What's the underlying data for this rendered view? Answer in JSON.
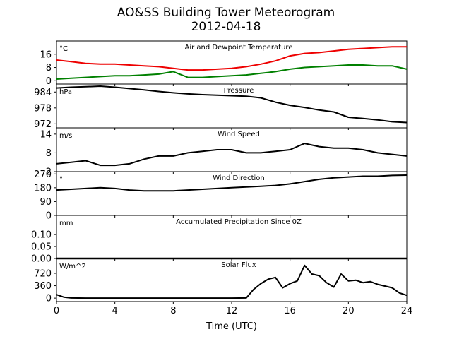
{
  "title": "AO&SS Building Tower Meteorogram",
  "subtitle": "2012-04-18",
  "xlabel": "Time (UTC)",
  "xticks": [
    "0",
    "4",
    "8",
    "12",
    "16",
    "20",
    "24"
  ],
  "colors": {
    "temperature": "#ee0000",
    "dewpoint": "#008000",
    "line": "#000000"
  },
  "chart_data": [
    {
      "type": "line",
      "title": "Air and Dewpoint Temperature",
      "unit": "°C",
      "ylim": [
        -2,
        24
      ],
      "yticks": [
        "0",
        "8",
        "16"
      ],
      "x": [
        0,
        1,
        2,
        3,
        4,
        5,
        6,
        7,
        8,
        9,
        10,
        11,
        12,
        13,
        14,
        15,
        16,
        17,
        18,
        19,
        20,
        21,
        22,
        23,
        24
      ],
      "series": [
        {
          "color": "#ee0000",
          "values": [
            12.5,
            11.5,
            10.5,
            10,
            10,
            9.5,
            9,
            8.5,
            7.5,
            6.5,
            6.5,
            7,
            7.5,
            8.5,
            10,
            12,
            15,
            16.5,
            17,
            18,
            19,
            19.5,
            20,
            20.5,
            20.5
          ]
        },
        {
          "color": "#008000",
          "values": [
            1,
            1.5,
            2,
            2.5,
            3,
            3,
            3.5,
            4,
            5.5,
            2,
            2,
            2.5,
            3,
            3.5,
            4.5,
            5.5,
            7,
            8,
            8.5,
            9,
            9.5,
            9.5,
            9,
            9,
            7
          ]
        }
      ]
    },
    {
      "type": "line",
      "title": "Pressure",
      "unit": "hPa",
      "ylim": [
        970.5,
        987
      ],
      "yticks": [
        "972",
        "978",
        "984"
      ],
      "x": [
        0,
        1,
        2,
        3,
        4,
        5,
        6,
        7,
        8,
        9,
        10,
        11,
        12,
        13,
        14,
        15,
        16,
        17,
        18,
        19,
        20,
        21,
        22,
        23,
        24
      ],
      "series": [
        {
          "color": "#000000",
          "values": [
            985.5,
            985.8,
            986,
            986.2,
            985.8,
            985.3,
            984.8,
            984.2,
            983.7,
            983.3,
            983,
            982.8,
            982.6,
            982.4,
            981.8,
            980.2,
            979,
            978.2,
            977.2,
            976.5,
            974.5,
            974,
            973.5,
            972.8,
            972.5
          ]
        }
      ]
    },
    {
      "type": "line",
      "title": "Wind Speed",
      "unit": "m/s",
      "ylim": [
        2,
        16
      ],
      "yticks": [
        "2",
        "8",
        "14"
      ],
      "x": [
        0,
        1,
        2,
        3,
        4,
        5,
        6,
        7,
        8,
        9,
        10,
        11,
        12,
        13,
        14,
        15,
        16,
        17,
        18,
        19,
        20,
        21,
        22,
        23,
        24
      ],
      "series": [
        {
          "color": "#000000",
          "values": [
            4.5,
            5,
            5.5,
            4,
            4,
            4.5,
            6,
            7,
            7,
            8,
            8.5,
            9,
            9,
            8,
            8,
            8.5,
            9,
            11,
            10,
            9.5,
            9.5,
            9,
            8,
            7.5,
            7
          ]
        }
      ]
    },
    {
      "type": "line",
      "title": "Wind Direction",
      "unit": "°",
      "ylim": [
        0,
        285
      ],
      "yticks": [
        "0",
        "90",
        "180",
        "270"
      ],
      "x": [
        0,
        1,
        2,
        3,
        4,
        5,
        6,
        7,
        8,
        9,
        10,
        11,
        12,
        13,
        14,
        15,
        16,
        17,
        18,
        19,
        20,
        21,
        22,
        23,
        24
      ],
      "series": [
        {
          "color": "#000000",
          "values": [
            165,
            170,
            175,
            180,
            175,
            165,
            160,
            160,
            160,
            165,
            170,
            175,
            180,
            185,
            190,
            195,
            205,
            220,
            235,
            245,
            250,
            255,
            255,
            260,
            262
          ]
        }
      ]
    },
    {
      "type": "line",
      "title": "Accumulated Precipitation Since 0Z",
      "unit": "mm",
      "ylim": [
        0,
        0.18
      ],
      "yticks": [
        "0.00",
        "0.05",
        "0.10"
      ],
      "x": [
        0,
        24
      ],
      "series": [
        {
          "color": "#000000",
          "values": [
            0,
            0
          ]
        }
      ]
    },
    {
      "type": "line",
      "title": "Solar Flux",
      "unit": "W/m^2",
      "ylim": [
        -100,
        1150
      ],
      "yticks": [
        "0",
        "360",
        "720"
      ],
      "x": [
        0,
        0.5,
        1,
        2,
        4,
        6,
        8,
        10,
        12,
        13,
        13.5,
        14,
        14.5,
        15,
        15.5,
        16,
        16.5,
        17,
        17.5,
        18,
        18.5,
        19,
        19.5,
        20,
        20.5,
        21,
        21.5,
        22,
        22.5,
        23,
        23.5,
        24
      ],
      "series": [
        {
          "color": "#000000",
          "values": [
            100,
            30,
            5,
            0,
            0,
            0,
            0,
            0,
            0,
            5,
            250,
            420,
            550,
            600,
            300,
            420,
            500,
            950,
            700,
            650,
            450,
            320,
            700,
            500,
            520,
            450,
            480,
            400,
            350,
            300,
            150,
            80
          ]
        }
      ]
    }
  ]
}
